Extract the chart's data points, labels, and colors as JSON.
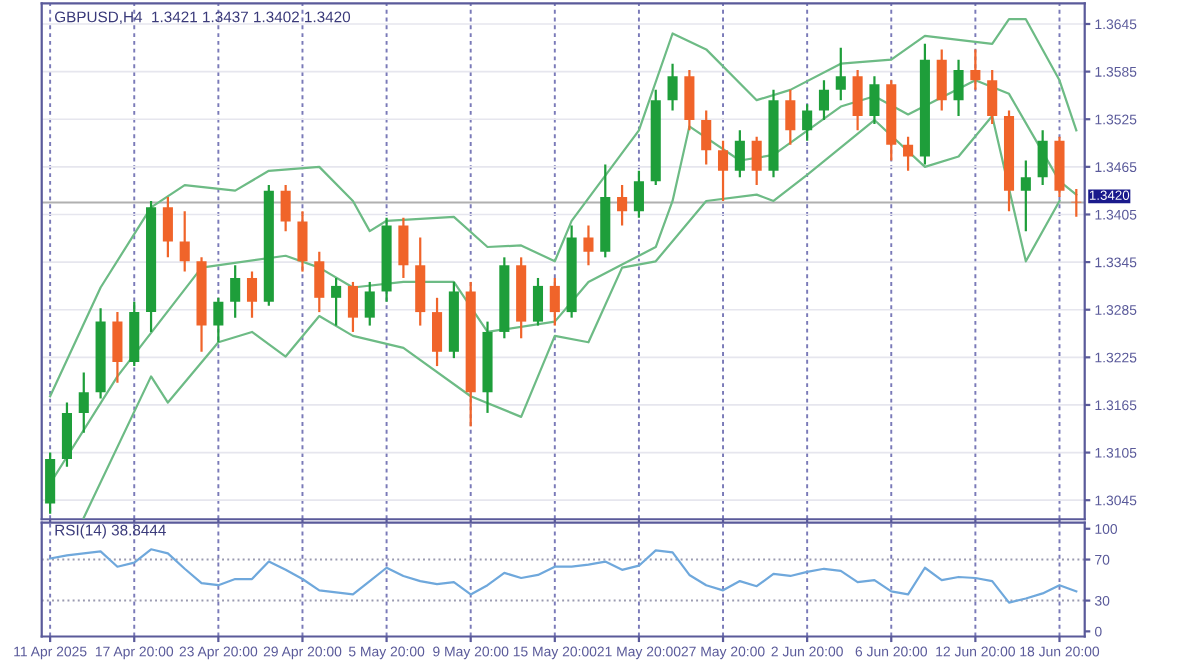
{
  "chart_data": [
    {
      "type": "candlestick",
      "title": "GBPUSD,H4  1.3421 1.3437 1.3402 1.3420",
      "categories": [
        null,
        null,
        null,
        null,
        null,
        null,
        null,
        null,
        null,
        null,
        null,
        null,
        null,
        null,
        null,
        null,
        null,
        null,
        null,
        null,
        null,
        null,
        null,
        null,
        null,
        null,
        null,
        null,
        null,
        null,
        null,
        null,
        null,
        null,
        null,
        null,
        null,
        null,
        null,
        null,
        null,
        null,
        null,
        null,
        null,
        null,
        null,
        null,
        null,
        null,
        null,
        null,
        null,
        null,
        null,
        null,
        null,
        null,
        null,
        null,
        null,
        null
      ],
      "ohlc": [
        [
          1.3041,
          1.3105,
          1.3028,
          1.3097
        ],
        [
          1.3097,
          1.3168,
          1.3087,
          1.3155
        ],
        [
          1.3155,
          1.3206,
          1.313,
          1.3181
        ],
        [
          1.3181,
          1.3287,
          1.3173,
          1.327
        ],
        [
          1.327,
          1.3282,
          1.3193,
          1.3219
        ],
        [
          1.3219,
          1.3295,
          1.3214,
          1.3282
        ],
        [
          1.3282,
          1.3422,
          1.3257,
          1.3414
        ],
        [
          1.3414,
          1.3427,
          1.3351,
          1.3371
        ],
        [
          1.3371,
          1.3409,
          1.3333,
          1.3346
        ],
        [
          1.3346,
          1.3351,
          1.3232,
          1.3265
        ],
        [
          1.3265,
          1.33,
          1.3244,
          1.3295
        ],
        [
          1.3295,
          1.3341,
          1.3275,
          1.3325
        ],
        [
          1.3325,
          1.3333,
          1.3275,
          1.3295
        ],
        [
          1.3295,
          1.3442,
          1.329,
          1.3435
        ],
        [
          1.3435,
          1.3442,
          1.3384,
          1.3396
        ],
        [
          1.3396,
          1.3409,
          1.3333,
          1.3346
        ],
        [
          1.3346,
          1.3358,
          1.3282,
          1.33
        ],
        [
          1.33,
          1.3325,
          1.3265,
          1.3315
        ],
        [
          1.3315,
          1.332,
          1.3257,
          1.3275
        ],
        [
          1.3275,
          1.332,
          1.3265,
          1.3308
        ],
        [
          1.3308,
          1.3401,
          1.3295,
          1.3391
        ],
        [
          1.3391,
          1.3401,
          1.3325,
          1.3341
        ],
        [
          1.3341,
          1.3376,
          1.3265,
          1.3282
        ],
        [
          1.3282,
          1.33,
          1.3214,
          1.3232
        ],
        [
          1.3232,
          1.332,
          1.3224,
          1.3308
        ],
        [
          1.3308,
          1.332,
          1.3138,
          1.3181
        ],
        [
          1.3181,
          1.327,
          1.3155,
          1.3257
        ],
        [
          1.3257,
          1.3351,
          1.3249,
          1.3341
        ],
        [
          1.3341,
          1.3351,
          1.3249,
          1.327
        ],
        [
          1.327,
          1.3325,
          1.3265,
          1.3315
        ],
        [
          1.3315,
          1.3325,
          1.3265,
          1.3282
        ],
        [
          1.3282,
          1.3391,
          1.3275,
          1.3376
        ],
        [
          1.3376,
          1.3391,
          1.3341,
          1.3358
        ],
        [
          1.3358,
          1.3468,
          1.3351,
          1.3427
        ],
        [
          1.3427,
          1.3442,
          1.3391,
          1.3409
        ],
        [
          1.3409,
          1.346,
          1.3401,
          1.3447
        ],
        [
          1.3447,
          1.3562,
          1.3442,
          1.3549
        ],
        [
          1.3549,
          1.3595,
          1.3536,
          1.3579
        ],
        [
          1.3579,
          1.3587,
          1.3511,
          1.3524
        ],
        [
          1.3524,
          1.3536,
          1.3468,
          1.3486
        ],
        [
          1.3486,
          1.3498,
          1.3422,
          1.346
        ],
        [
          1.346,
          1.3511,
          1.3452,
          1.3498
        ],
        [
          1.3498,
          1.3503,
          1.3442,
          1.346
        ],
        [
          1.346,
          1.3562,
          1.3452,
          1.3549
        ],
        [
          1.3549,
          1.3562,
          1.3493,
          1.3511
        ],
        [
          1.3511,
          1.3544,
          1.3498,
          1.3536
        ],
        [
          1.3536,
          1.3574,
          1.3524,
          1.3562
        ],
        [
          1.3562,
          1.3615,
          1.3549,
          1.3579
        ],
        [
          1.3579,
          1.3587,
          1.3511,
          1.3529
        ],
        [
          1.3529,
          1.3579,
          1.3519,
          1.3569
        ],
        [
          1.3569,
          1.3574,
          1.3473,
          1.3493
        ],
        [
          1.3493,
          1.3503,
          1.346,
          1.3478
        ],
        [
          1.3478,
          1.362,
          1.3468,
          1.36
        ],
        [
          1.36,
          1.3613,
          1.3536,
          1.3549
        ],
        [
          1.3549,
          1.36,
          1.3529,
          1.3587
        ],
        [
          1.3587,
          1.3613,
          1.3562,
          1.3574
        ],
        [
          1.3574,
          1.3587,
          1.3519,
          1.3529
        ],
        [
          1.3529,
          1.3536,
          1.3409,
          1.3435
        ],
        [
          1.3435,
          1.3473,
          1.3384,
          1.3452
        ],
        [
          1.3452,
          1.3511,
          1.3442,
          1.3498
        ],
        [
          1.3498,
          1.3503,
          1.3427,
          1.3435
        ],
        [
          1.3421,
          1.3437,
          1.3402,
          1.342
        ]
      ],
      "colors": [
        "#1e9e3a",
        "#1e9e3a",
        "#1e9e3a",
        "#1e9e3a",
        "#f0642a",
        "#1e9e3a",
        "#1e9e3a",
        "#f0642a",
        "#f0642a",
        "#f0642a",
        "#1e9e3a",
        "#1e9e3a",
        "#f0642a",
        "#1e9e3a",
        "#f0642a",
        "#f0642a",
        "#f0642a",
        "#1e9e3a",
        "#f0642a",
        "#1e9e3a",
        "#1e9e3a",
        "#f0642a",
        "#f0642a",
        "#f0642a",
        "#1e9e3a",
        "#f0642a",
        "#1e9e3a",
        "#1e9e3a",
        "#f0642a",
        "#1e9e3a",
        "#f0642a",
        "#1e9e3a",
        "#f0642a",
        "#1e9e3a",
        "#f0642a",
        "#1e9e3a",
        "#1e9e3a",
        "#1e9e3a",
        "#f0642a",
        "#f0642a",
        "#f0642a",
        "#1e9e3a",
        "#f0642a",
        "#1e9e3a",
        "#f0642a",
        "#1e9e3a",
        "#1e9e3a",
        "#1e9e3a",
        "#f0642a",
        "#1e9e3a",
        "#f0642a",
        "#f0642a",
        "#1e9e3a",
        "#f0642a",
        "#1e9e3a",
        "#f0642a",
        "#f0642a",
        "#f0642a",
        "#1e9e3a",
        "#1e9e3a",
        "#f0642a",
        "#f0642a"
      ],
      "series": [
        {
          "type": "line",
          "color": "#6dbb85",
          "values": [
            1.3176,
            null,
            null,
            1.3313,
            null,
            null,
            1.3414,
            null,
            1.3442,
            null,
            null,
            1.3435,
            null,
            1.346,
            null,
            null,
            1.3465,
            null,
            1.3422,
            1.3384,
            1.3397,
            null,
            null,
            null,
            1.3402,
            null,
            1.3364,
            null,
            1.3366,
            null,
            1.3346,
            1.3397,
            null,
            null,
            null,
            1.3511,
            null,
            1.3633,
            null,
            1.3613,
            null,
            null,
            1.3549,
            null,
            1.3562,
            null,
            null,
            1.3595,
            null,
            null,
            1.36,
            null,
            1.363,
            null,
            null,
            null,
            1.362,
            1.3651,
            1.3651,
            null,
            1.3574,
            1.3511
          ]
        },
        {
          "type": "line",
          "color": "#6dbb85",
          "values": [
            1.3066,
            null,
            null,
            null,
            1.3201,
            null,
            null,
            null,
            null,
            1.3338,
            null,
            null,
            null,
            null,
            1.3353,
            null,
            1.3338,
            null,
            1.3313,
            null,
            null,
            1.332,
            null,
            null,
            1.332,
            null,
            1.3257,
            null,
            null,
            null,
            1.327,
            null,
            1.332,
            null,
            null,
            null,
            1.3364,
            1.3422,
            1.3516,
            null,
            null,
            1.3473,
            null,
            1.348,
            null,
            null,
            null,
            1.3541,
            null,
            1.3554,
            null,
            1.3531,
            null,
            null,
            null,
            1.3574,
            null,
            1.3557,
            null,
            null,
            1.3447,
            1.343
          ]
        },
        {
          "type": "line",
          "color": "#6dbb85",
          "values": [
            null,
            null,
            1.3023,
            null,
            null,
            null,
            1.3201,
            1.3168,
            null,
            null,
            1.3244,
            null,
            1.3257,
            null,
            1.3226,
            null,
            1.3277,
            null,
            1.3252,
            null,
            null,
            1.3237,
            null,
            null,
            null,
            1.3176,
            null,
            null,
            1.315,
            null,
            1.3252,
            null,
            1.3244,
            null,
            1.3338,
            null,
            1.3346,
            null,
            null,
            1.3422,
            null,
            null,
            1.343,
            1.3422,
            null,
            1.3455,
            null,
            null,
            null,
            1.3524,
            null,
            null,
            1.3465,
            null,
            1.3478,
            null,
            1.3529,
            null,
            1.3346,
            null,
            1.3422,
            null
          ]
        }
      ],
      "ylim": [
        1.3021,
        1.3671
      ],
      "yticks": [
        1.3045,
        1.3105,
        1.3165,
        1.3225,
        1.3285,
        1.3345,
        1.3405,
        1.3465,
        1.3525,
        1.3585,
        1.3645
      ],
      "ref_lines": [
        {
          "axis": "y",
          "value": 1.342,
          "label": "1.3420",
          "color": "#b0b0b0"
        }
      ],
      "grid": true,
      "tick_labels": "y"
    },
    {
      "type": "line",
      "title": "RSI(14) 38.8444",
      "categories": [
        "11 Apr 2025",
        null,
        null,
        null,
        null,
        "17 Apr 20:00",
        null,
        null,
        null,
        null,
        "23 Apr 20:00",
        null,
        null,
        null,
        null,
        "29 Apr 20:00",
        null,
        null,
        null,
        null,
        "5 May 20:00",
        null,
        null,
        null,
        null,
        "9 May 20:00",
        null,
        null,
        null,
        null,
        "15 May 20:00",
        null,
        null,
        null,
        null,
        "21 May 20:00",
        null,
        null,
        null,
        null,
        "27 May 20:00",
        null,
        null,
        null,
        null,
        "2 Jun 20:00",
        null,
        null,
        null,
        null,
        "6 Jun 20:00",
        null,
        null,
        null,
        null,
        "12 Jun 20:00",
        null,
        null,
        null,
        null,
        "18 Jun 20:00",
        null
      ],
      "series": [
        {
          "color": "#6fa8dc",
          "values": [
            71,
            74,
            76,
            78,
            63,
            67,
            80,
            76,
            61,
            47,
            45,
            51,
            51,
            68,
            60,
            51,
            40,
            38,
            36,
            49,
            62,
            54,
            49,
            46,
            48,
            36,
            45,
            57,
            52,
            55,
            63,
            63,
            65,
            68,
            60,
            64,
            79,
            77,
            55,
            45,
            40,
            49,
            44,
            56,
            54,
            58,
            61,
            59,
            48,
            50,
            39,
            36,
            62,
            50,
            53,
            52,
            49,
            28,
            32,
            37,
            45,
            39
          ]
        }
      ],
      "ylim": [
        -5,
        106
      ],
      "yticks": [
        0,
        30,
        70,
        100
      ],
      "ref_lines": [
        {
          "axis": "y",
          "value": 30,
          "color": "#9a9ab0",
          "line_style": "dotted"
        },
        {
          "axis": "y",
          "value": 70,
          "color": "#9a9ab0",
          "line_style": "dotted"
        }
      ],
      "grid": "x"
    }
  ]
}
